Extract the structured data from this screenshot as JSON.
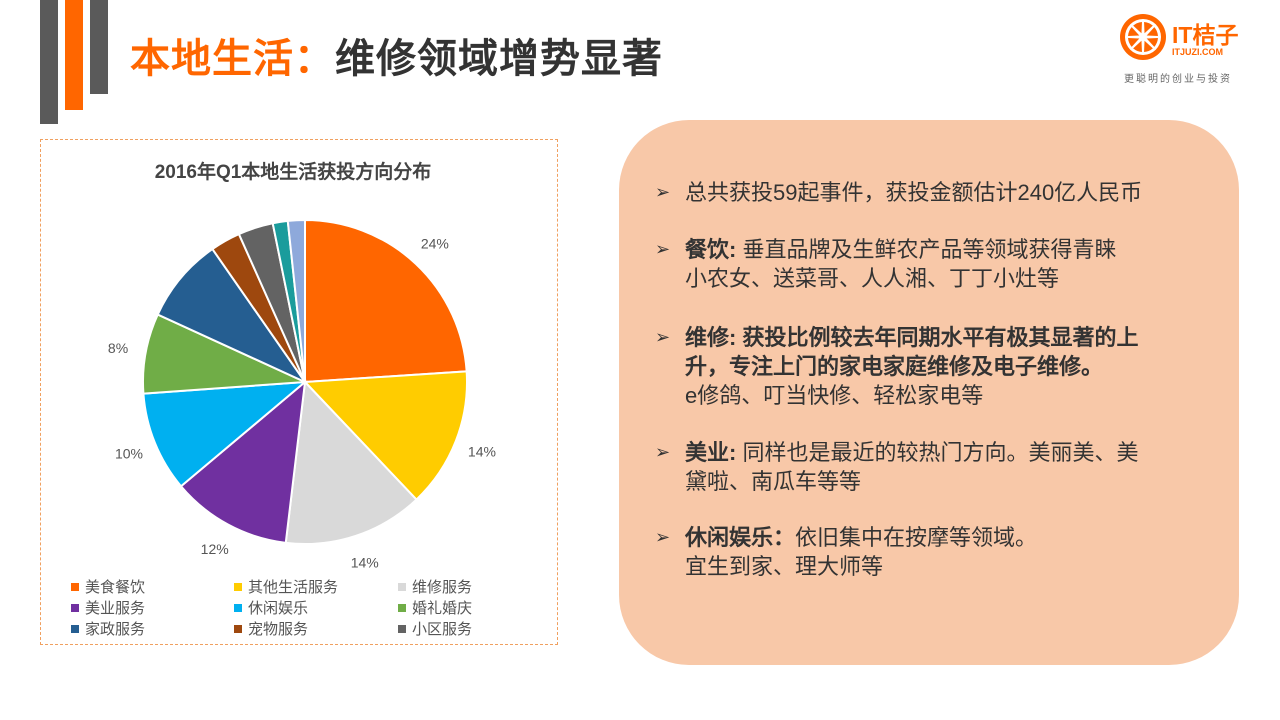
{
  "page": {
    "title_highlight": "本地生活：",
    "title_rest": "维修领域增势显著"
  },
  "logo": {
    "text": "IT桔子",
    "domain": "ITJUZI.COM",
    "slogan": "更聪明的创业与投资"
  },
  "colors": {
    "accent": "#ff6600",
    "dark_bar": "#5a5a5a",
    "panel_bg": "#f8c8a8"
  },
  "chart_data": {
    "type": "pie",
    "title": "2016年Q1本地生活获投方向分布",
    "categories": [
      "美食餐饮",
      "其他生活服务",
      "维修服务",
      "美业服务",
      "休闲娱乐",
      "婚礼婚庆",
      "家政服务",
      "宠物服务",
      "小区服务",
      "",
      ""
    ],
    "values": [
      24,
      14,
      14,
      12,
      10,
      8,
      8.5,
      3,
      3.5,
      1.5,
      1.7
    ],
    "colors": [
      "#ff6600",
      "#ffcc00",
      "#d9d9d9",
      "#7030a0",
      "#00b0f0",
      "#70ad47",
      "#255e91",
      "#9e480e",
      "#636363",
      "#1a9c9c",
      "#8ea9db"
    ],
    "data_labels": [
      "24%",
      "14%",
      "14%",
      "12%",
      "10%",
      "8%",
      "",
      "",
      "",
      "",
      ""
    ],
    "legend": [
      "美食餐饮",
      "其他生活服务",
      "维修服务",
      "美业服务",
      "休闲娱乐",
      "婚礼婚庆",
      "家政服务",
      "宠物服务",
      "小区服务"
    ],
    "legend_placement": "bottom"
  },
  "bullets": [
    {
      "label": "",
      "lines": [
        "总共获投59起事件，获投金额估计240亿人民币"
      ],
      "bold_lines": 0
    },
    {
      "label": "餐饮:",
      "lines": [
        "垂直品牌及生鲜农产品等领域获得青睐",
        "小农女、送菜哥、人人湘、丁丁小灶等"
      ],
      "bold_lines": 0
    },
    {
      "label": "维修:",
      "lines": [
        "获投比例较去年同期水平有极其显著的上",
        "升，专注上门的家电家庭维修及电子维修。",
        "e修鸽、叮当快修、轻松家电等"
      ],
      "bold_lines": 2
    },
    {
      "label": "美业:",
      "lines": [
        "同样也是最近的较热门方向。美丽美、美",
        "黛啦、南瓜车等等"
      ],
      "bold_lines": 0
    },
    {
      "label": "休闲娱乐：",
      "lines": [
        "依旧集中在按摩等领域。",
        "宜生到家、理大师等"
      ],
      "bold_lines": 0
    }
  ],
  "bullet_marker": "➢"
}
